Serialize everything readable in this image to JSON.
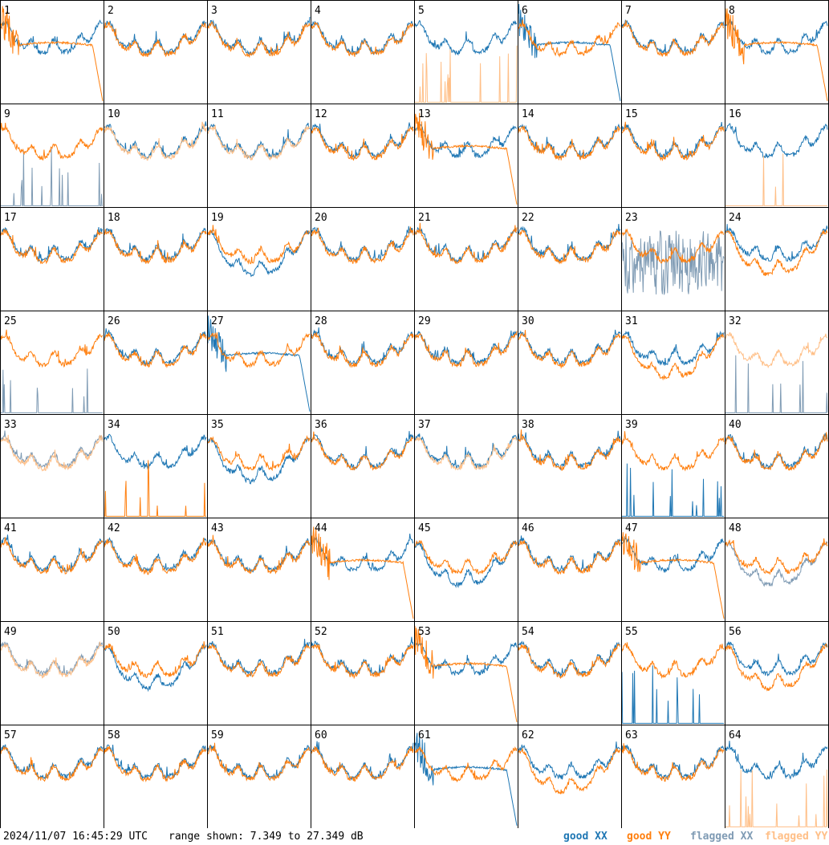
{
  "footer": {
    "timestamp": "2024/11/07 16:45:29 UTC",
    "range_text": "range shown: 7.349 to 27.349 dB",
    "legend": {
      "good_xx": "good XX",
      "good_yy": "good YY",
      "flagged_xx": "flagged XX",
      "flagged_yy": "flagged YY"
    }
  },
  "colors": {
    "good_xx": "#1f77b4",
    "good_yy": "#ff7f0e",
    "flagged_xx": "#7f9bb4",
    "flagged_yy": "#ffbf87",
    "grid": "#000000",
    "background": "#ffffff"
  },
  "chart_data": {
    "type": "line",
    "layout": {
      "rows": 8,
      "cols": 8
    },
    "ylim": [
      7.349,
      27.349
    ],
    "y_unit": "dB",
    "series_names": [
      "good XX",
      "good YY",
      "flagged XX",
      "flagged YY"
    ],
    "panels": [
      {
        "label": "1",
        "xx": "normal",
        "yy": "rolloff",
        "xx_flagged": false,
        "yy_flagged": false
      },
      {
        "label": "2",
        "xx": "normal",
        "yy": "normal",
        "xx_flagged": false,
        "yy_flagged": false
      },
      {
        "label": "3",
        "xx": "normal",
        "yy": "normal",
        "xx_flagged": false,
        "yy_flagged": false
      },
      {
        "label": "4",
        "xx": "normal",
        "yy": "normal",
        "xx_flagged": false,
        "yy_flagged": false
      },
      {
        "label": "5",
        "xx": "normal",
        "yy": "spikes",
        "xx_flagged": false,
        "yy_flagged": true
      },
      {
        "label": "6",
        "xx": "rolloff",
        "yy": "normal",
        "xx_flagged": false,
        "yy_flagged": false
      },
      {
        "label": "7",
        "xx": "normal",
        "yy": "normal",
        "xx_flagged": false,
        "yy_flagged": false
      },
      {
        "label": "8",
        "xx": "normal",
        "yy": "rolloff",
        "xx_flagged": false,
        "yy_flagged": false
      },
      {
        "label": "9",
        "xx": "spikes",
        "yy": "normal",
        "xx_flagged": true,
        "yy_flagged": false
      },
      {
        "label": "10",
        "xx": "normal",
        "yy": "normal",
        "xx_flagged": false,
        "yy_flagged": true
      },
      {
        "label": "11",
        "xx": "normal",
        "yy": "normal",
        "xx_flagged": false,
        "yy_flagged": true
      },
      {
        "label": "12",
        "xx": "normal",
        "yy": "normal",
        "xx_flagged": false,
        "yy_flagged": false
      },
      {
        "label": "13",
        "xx": "normal",
        "yy": "rolloff",
        "xx_flagged": false,
        "yy_flagged": false
      },
      {
        "label": "14",
        "xx": "normal",
        "yy": "normal",
        "xx_flagged": false,
        "yy_flagged": false
      },
      {
        "label": "15",
        "xx": "normal",
        "yy": "normal",
        "xx_flagged": false,
        "yy_flagged": false
      },
      {
        "label": "16",
        "xx": "normal",
        "yy": "spikes",
        "xx_flagged": false,
        "yy_flagged": true
      },
      {
        "label": "17",
        "xx": "normal",
        "yy": "normal",
        "xx_flagged": false,
        "yy_flagged": false
      },
      {
        "label": "18",
        "xx": "normal",
        "yy": "normal",
        "xx_flagged": false,
        "yy_flagged": false
      },
      {
        "label": "19",
        "xx": "low",
        "yy": "normal",
        "xx_flagged": false,
        "yy_flagged": false
      },
      {
        "label": "20",
        "xx": "normal",
        "yy": "normal",
        "xx_flagged": false,
        "yy_flagged": false
      },
      {
        "label": "21",
        "xx": "normal",
        "yy": "normal",
        "xx_flagged": false,
        "yy_flagged": false
      },
      {
        "label": "22",
        "xx": "normal",
        "yy": "normal",
        "xx_flagged": false,
        "yy_flagged": false
      },
      {
        "label": "23",
        "xx": "noise",
        "yy": "normal",
        "xx_flagged": true,
        "yy_flagged": false
      },
      {
        "label": "24",
        "xx": "normal",
        "yy": "low",
        "xx_flagged": false,
        "yy_flagged": false
      },
      {
        "label": "25",
        "xx": "spikes",
        "yy": "normal",
        "xx_flagged": true,
        "yy_flagged": false
      },
      {
        "label": "26",
        "xx": "normal",
        "yy": "normal",
        "xx_flagged": false,
        "yy_flagged": false
      },
      {
        "label": "27",
        "xx": "rolloff",
        "yy": "normal",
        "xx_flagged": false,
        "yy_flagged": false
      },
      {
        "label": "28",
        "xx": "normal",
        "yy": "normal",
        "xx_flagged": false,
        "yy_flagged": false
      },
      {
        "label": "29",
        "xx": "normal",
        "yy": "normal",
        "xx_flagged": false,
        "yy_flagged": false
      },
      {
        "label": "30",
        "xx": "normal",
        "yy": "normal",
        "xx_flagged": false,
        "yy_flagged": false
      },
      {
        "label": "31",
        "xx": "normal",
        "yy": "low",
        "xx_flagged": false,
        "yy_flagged": false
      },
      {
        "label": "32",
        "xx": "spikes",
        "yy": "normal",
        "xx_flagged": true,
        "yy_flagged": true
      },
      {
        "label": "33",
        "xx": "normal",
        "yy": "normal",
        "xx_flagged": true,
        "yy_flagged": true
      },
      {
        "label": "34",
        "xx": "normal",
        "yy": "spikes",
        "xx_flagged": false,
        "yy_flagged": false
      },
      {
        "label": "35",
        "xx": "low",
        "yy": "normal",
        "xx_flagged": false,
        "yy_flagged": false
      },
      {
        "label": "36",
        "xx": "normal",
        "yy": "normal",
        "xx_flagged": false,
        "yy_flagged": false
      },
      {
        "label": "37",
        "xx": "normal",
        "yy": "normal",
        "xx_flagged": false,
        "yy_flagged": true
      },
      {
        "label": "38",
        "xx": "normal",
        "yy": "normal",
        "xx_flagged": false,
        "yy_flagged": false
      },
      {
        "label": "39",
        "xx": "spikes",
        "yy": "normal",
        "xx_flagged": false,
        "yy_flagged": false
      },
      {
        "label": "40",
        "xx": "normal",
        "yy": "normal",
        "xx_flagged": false,
        "yy_flagged": false
      },
      {
        "label": "41",
        "xx": "normal",
        "yy": "normal",
        "xx_flagged": false,
        "yy_flagged": false
      },
      {
        "label": "42",
        "xx": "normal",
        "yy": "normal",
        "xx_flagged": false,
        "yy_flagged": false
      },
      {
        "label": "43",
        "xx": "normal",
        "yy": "normal",
        "xx_flagged": false,
        "yy_flagged": false
      },
      {
        "label": "44",
        "xx": "normal",
        "yy": "rolloff",
        "xx_flagged": false,
        "yy_flagged": false
      },
      {
        "label": "45",
        "xx": "low",
        "yy": "normal",
        "xx_flagged": false,
        "yy_flagged": false
      },
      {
        "label": "46",
        "xx": "normal",
        "yy": "normal",
        "xx_flagged": false,
        "yy_flagged": false
      },
      {
        "label": "47",
        "xx": "normal",
        "yy": "rolloff",
        "xx_flagged": false,
        "yy_flagged": false
      },
      {
        "label": "48",
        "xx": "low",
        "yy": "normal",
        "xx_flagged": true,
        "yy_flagged": false
      },
      {
        "label": "49",
        "xx": "normal",
        "yy": "normal",
        "xx_flagged": true,
        "yy_flagged": true
      },
      {
        "label": "50",
        "xx": "low",
        "yy": "normal",
        "xx_flagged": false,
        "yy_flagged": false
      },
      {
        "label": "51",
        "xx": "normal",
        "yy": "normal",
        "xx_flagged": false,
        "yy_flagged": false
      },
      {
        "label": "52",
        "xx": "normal",
        "yy": "normal",
        "xx_flagged": false,
        "yy_flagged": false
      },
      {
        "label": "53",
        "xx": "normal",
        "yy": "rolloff",
        "xx_flagged": false,
        "yy_flagged": false
      },
      {
        "label": "54",
        "xx": "normal",
        "yy": "normal",
        "xx_flagged": false,
        "yy_flagged": false
      },
      {
        "label": "55",
        "xx": "spikes",
        "yy": "normal",
        "xx_flagged": false,
        "yy_flagged": false
      },
      {
        "label": "56",
        "xx": "normal",
        "yy": "low",
        "xx_flagged": false,
        "yy_flagged": false
      },
      {
        "label": "57",
        "xx": "normal",
        "yy": "normal",
        "xx_flagged": false,
        "yy_flagged": false
      },
      {
        "label": "58",
        "xx": "normal",
        "yy": "normal",
        "xx_flagged": false,
        "yy_flagged": false
      },
      {
        "label": "59",
        "xx": "normal",
        "yy": "normal",
        "xx_flagged": false,
        "yy_flagged": false
      },
      {
        "label": "60",
        "xx": "normal",
        "yy": "normal",
        "xx_flagged": false,
        "yy_flagged": false
      },
      {
        "label": "61",
        "xx": "rolloff",
        "yy": "normal",
        "xx_flagged": false,
        "yy_flagged": false
      },
      {
        "label": "62",
        "xx": "normal",
        "yy": "low",
        "xx_flagged": false,
        "yy_flagged": false
      },
      {
        "label": "63",
        "xx": "normal",
        "yy": "normal",
        "xx_flagged": false,
        "yy_flagged": false
      },
      {
        "label": "64",
        "xx": "normal",
        "yy": "spikes",
        "xx_flagged": false,
        "yy_flagged": true
      }
    ]
  }
}
